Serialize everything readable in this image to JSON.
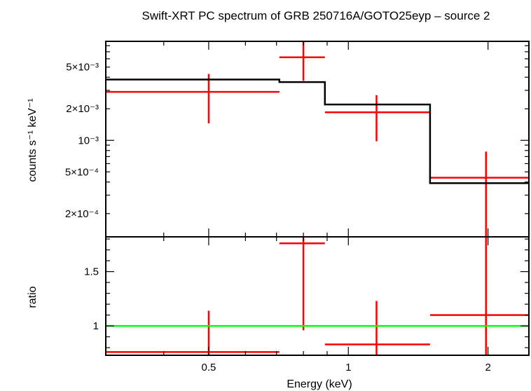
{
  "colors": {
    "data": "#ff0000",
    "model": "#000000",
    "unity": "#00ff00",
    "frame": "#000000"
  },
  "chart_data": [
    {
      "type": "scatter",
      "title": "Swift-XRT PC spectrum of GRB 250716A/GOTO25eyp – source 2",
      "xlabel": "",
      "ylabel": "counts s⁻¹ keV⁻¹",
      "xscale": "log",
      "yscale": "log",
      "xlim": [
        0.3,
        2.45
      ],
      "ylim": [
        0.00012,
        0.0088
      ],
      "grid": false,
      "y_ticks": [
        {
          "value": 0.0002,
          "label": "2×10⁻⁴"
        },
        {
          "value": 0.0005,
          "label": "5×10⁻⁴"
        },
        {
          "value": 0.001,
          "label": "10⁻³"
        },
        {
          "value": 0.002,
          "label": "2×10⁻³"
        },
        {
          "value": 0.005,
          "label": "5×10⁻³"
        }
      ],
      "series": [
        {
          "role": "data",
          "points": [
            {
              "x": 0.5,
              "x_lo": 0.3,
              "x_hi": 0.71,
              "y": 0.0029,
              "y_lo": 0.00145,
              "y_hi": 0.0043
            },
            {
              "x": 0.8,
              "x_lo": 0.71,
              "x_hi": 0.89,
              "y": 0.0062,
              "y_lo": 0.0037,
              "y_hi": 0.0088
            },
            {
              "x": 1.15,
              "x_lo": 0.89,
              "x_hi": 1.5,
              "y": 0.00185,
              "y_lo": 0.00098,
              "y_hi": 0.0027
            },
            {
              "x": 1.98,
              "x_lo": 1.5,
              "x_hi": 2.45,
              "y": 0.00044,
              "y_lo": 0.00012,
              "y_hi": 0.00078
            }
          ]
        },
        {
          "role": "model",
          "steps": [
            {
              "x_lo": 0.3,
              "x_hi": 0.71,
              "y": 0.0038
            },
            {
              "x_lo": 0.71,
              "x_hi": 0.89,
              "y": 0.0036
            },
            {
              "x_lo": 0.89,
              "x_hi": 1.5,
              "y": 0.0022
            },
            {
              "x_lo": 1.5,
              "x_hi": 2.45,
              "y": 0.00039
            }
          ]
        }
      ]
    },
    {
      "type": "scatter",
      "title": "",
      "xlabel": "Energy (keV)",
      "ylabel": "ratio",
      "xscale": "log",
      "yscale": "linear",
      "xlim": [
        0.3,
        2.45
      ],
      "ylim": [
        0.73,
        1.82
      ],
      "grid": false,
      "x_ticks": [
        {
          "value": 0.5,
          "label": "0.5"
        },
        {
          "value": 1,
          "label": "1"
        },
        {
          "value": 2,
          "label": "2"
        }
      ],
      "y_ticks": [
        {
          "value": 1,
          "label": "1"
        },
        {
          "value": 1.5,
          "label": "1.5"
        }
      ],
      "series": [
        {
          "role": "data",
          "points": [
            {
              "x": 0.5,
              "x_lo": 0.3,
              "x_hi": 0.71,
              "y": 0.76,
              "y_lo": 0.73,
              "y_hi": 1.14
            },
            {
              "x": 0.8,
              "x_lo": 0.71,
              "x_hi": 0.89,
              "y": 1.76,
              "y_lo": 0.96,
              "y_hi": 1.82
            },
            {
              "x": 1.15,
              "x_lo": 0.89,
              "x_hi": 1.5,
              "y": 0.83,
              "y_lo": 0.73,
              "y_hi": 1.23
            },
            {
              "x": 1.98,
              "x_lo": 1.5,
              "x_hi": 2.45,
              "y": 1.1,
              "y_lo": 0.73,
              "y_hi": 1.82
            }
          ]
        },
        {
          "role": "unity",
          "y": 1
        }
      ]
    }
  ]
}
